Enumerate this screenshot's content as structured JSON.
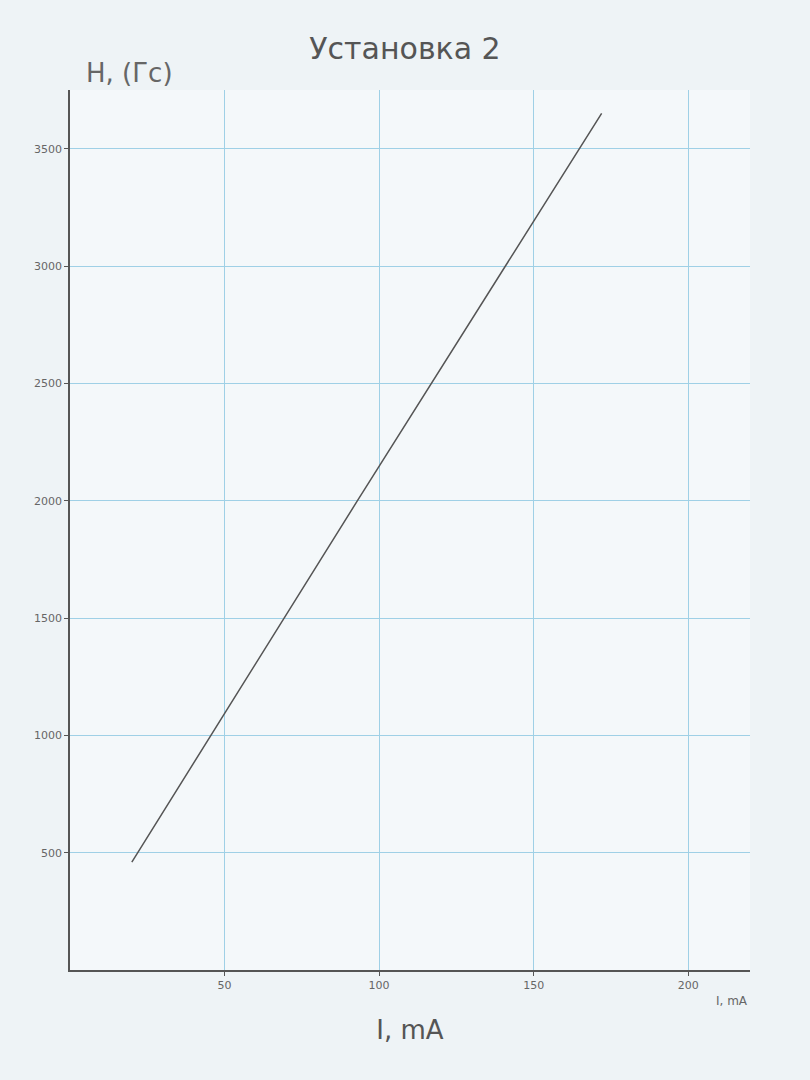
{
  "chart_data": {
    "type": "line",
    "title": "Установка 2",
    "x_label": "I, mA",
    "y_label": "H, (Гс)",
    "annotations": [
      "I, mA"
    ],
    "x": [
      20,
      93,
      172
    ],
    "values": [
      460,
      2000,
      3650
    ],
    "color": "#555555",
    "xlim": [
      0,
      220
    ],
    "ylim": [
      0,
      3750
    ],
    "xticks": [
      50,
      100,
      150,
      200
    ],
    "yticks": [
      500,
      1000,
      1500,
      2000,
      2500,
      3000,
      3500
    ],
    "grid": true
  }
}
